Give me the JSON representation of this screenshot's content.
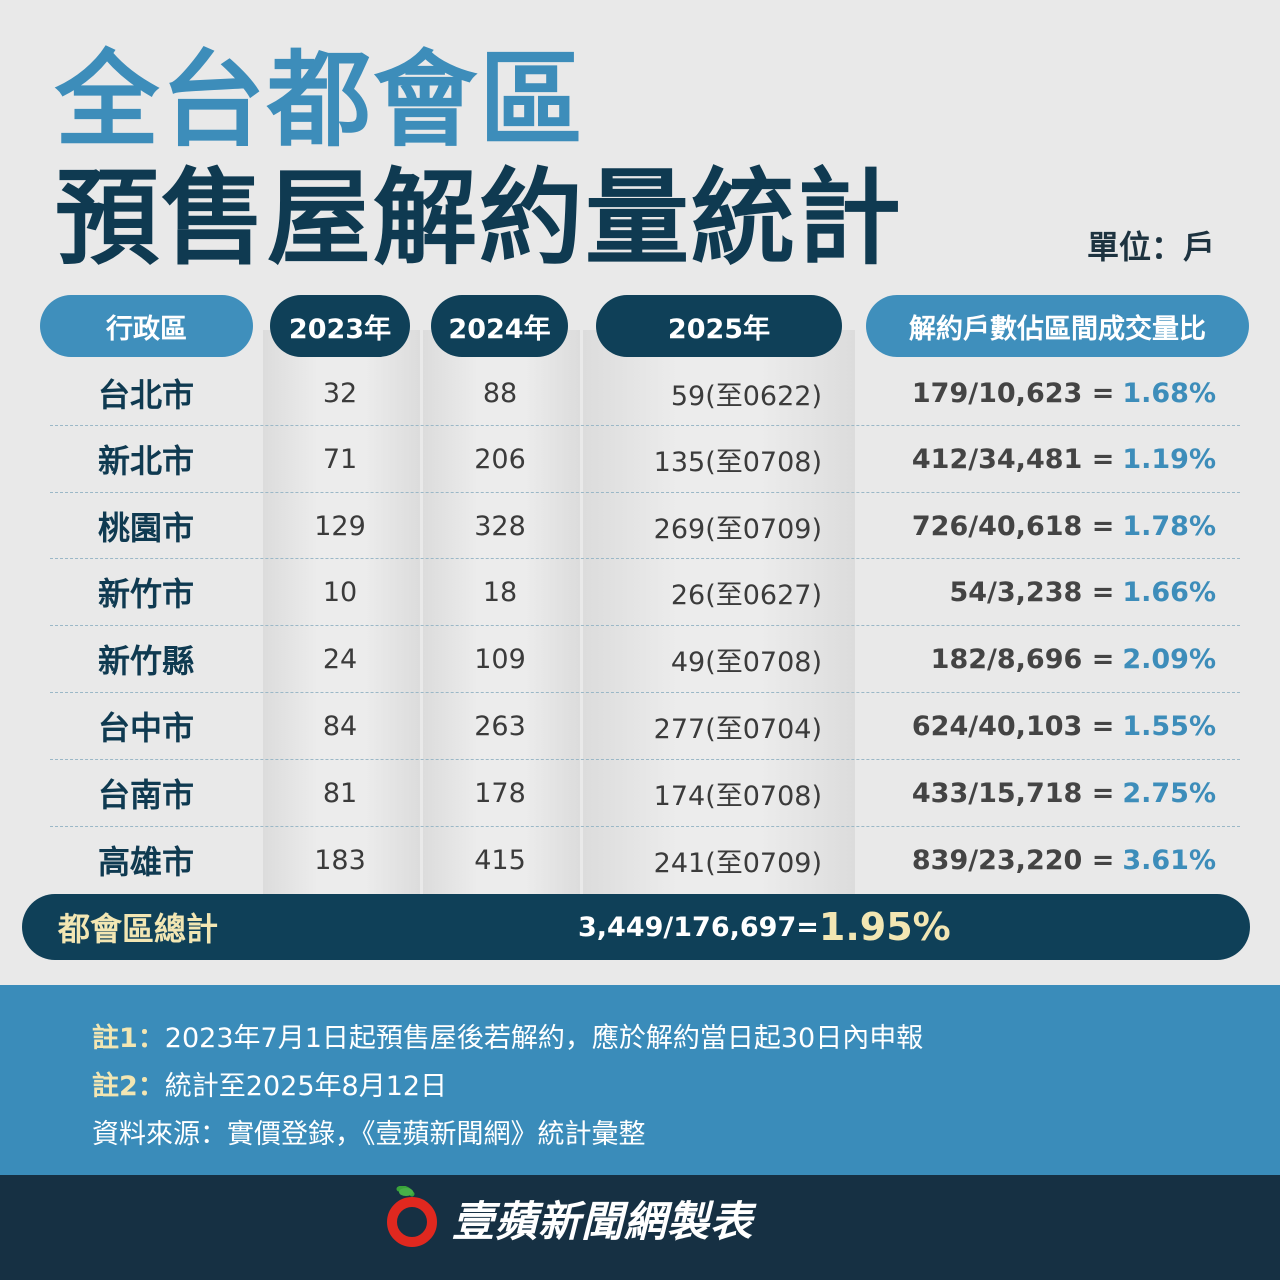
{
  "title": {
    "line1": "全台都會區",
    "line2": "預售屋解約量統計"
  },
  "unit": "單位：戶",
  "table": {
    "headers": {
      "district": "行政區",
      "y2023": "2023年",
      "y2024": "2024年",
      "y2025": "2025年",
      "ratio": "解約戶數佔區間成交量比"
    },
    "rows": [
      {
        "district": "台北市",
        "y2023": "32",
        "y2024": "88",
        "y2025": "59(至0622)",
        "ratio_frac": "179/10,623 =",
        "ratio_pct": "1.68%"
      },
      {
        "district": "新北市",
        "y2023": "71",
        "y2024": "206",
        "y2025": "135(至0708)",
        "ratio_frac": "412/34,481 =",
        "ratio_pct": "1.19%"
      },
      {
        "district": "桃園市",
        "y2023": "129",
        "y2024": "328",
        "y2025": "269(至0709)",
        "ratio_frac": "726/40,618 =",
        "ratio_pct": "1.78%"
      },
      {
        "district": "新竹市",
        "y2023": "10",
        "y2024": "18",
        "y2025": "26(至0627)",
        "ratio_frac": "54/3,238 =",
        "ratio_pct": "1.66%"
      },
      {
        "district": "新竹縣",
        "y2023": "24",
        "y2024": "109",
        "y2025": "49(至0708)",
        "ratio_frac": "182/8,696 =",
        "ratio_pct": "2.09%"
      },
      {
        "district": "台中市",
        "y2023": "84",
        "y2024": "263",
        "y2025": "277(至0704)",
        "ratio_frac": "624/40,103 =",
        "ratio_pct": "1.55%"
      },
      {
        "district": "台南市",
        "y2023": "81",
        "y2024": "178",
        "y2025": "174(至0708)",
        "ratio_frac": "433/15,718 =",
        "ratio_pct": "2.75%"
      },
      {
        "district": "高雄市",
        "y2023": "183",
        "y2024": "415",
        "y2025": "241(至0709)",
        "ratio_frac": "839/23,220 =",
        "ratio_pct": "3.61%"
      }
    ],
    "total": {
      "label": "都會區總計",
      "frac": "3,449/176,697=",
      "pct": "1.95%"
    }
  },
  "notes": [
    {
      "label": "註1：",
      "text": "2023年7月1日起預售屋後若解約，應於解約當日起30日內申報"
    },
    {
      "label": "註2：",
      "text": "統計至2025年8月12日"
    },
    {
      "label": "",
      "text": "資料來源：實價登錄，《壹蘋新聞網》統計彙整"
    }
  ],
  "footer": {
    "text": "壹蘋新聞網製表",
    "logo_icon": "apple-logo-icon"
  },
  "colors": {
    "accent_blue": "#3d8dba",
    "dark_navy": "#0f3a51",
    "cream": "#f2e6b3",
    "footer_bg": "#163043"
  }
}
